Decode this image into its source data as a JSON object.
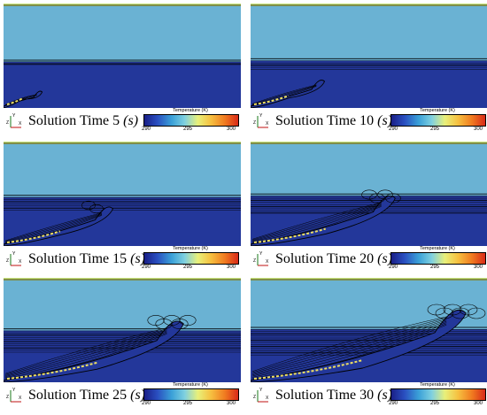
{
  "colors": {
    "upper_fluid": "#6ab2d3",
    "lower_fluid": "#23379a",
    "top_band": "#c9e27a",
    "contour": "#000000",
    "plume_hot": "#f0e060"
  },
  "colorbar": {
    "title": "Temperature (K)",
    "ticks": [
      "290",
      "295",
      "300"
    ],
    "range": [
      290,
      300
    ],
    "colormap": [
      "#1a1f87",
      "#2a4fc0",
      "#3aa0d8",
      "#7fd0e0",
      "#e8f07a",
      "#f6c040",
      "#f07a20",
      "#d82a18"
    ]
  },
  "axis_icon": {
    "y_label": "Y",
    "z_label": "Z",
    "x_label": "X"
  },
  "panels": [
    {
      "label": "Solution Time 5",
      "unit": "(s)",
      "time_s": 5
    },
    {
      "label": "Solution Time 10",
      "unit": "(s)",
      "time_s": 10
    },
    {
      "label": "Solution Time 15",
      "unit": "(s)",
      "time_s": 15
    },
    {
      "label": "Solution Time 20",
      "unit": "(s)",
      "time_s": 20
    },
    {
      "label": "Solution Time 25",
      "unit": "(s)",
      "time_s": 25
    },
    {
      "label": "Solution Time 30",
      "unit": "(s)",
      "time_s": 30
    }
  ]
}
